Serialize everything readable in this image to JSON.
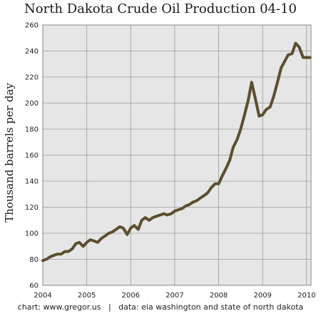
{
  "chart_data": {
    "type": "line",
    "title": "North Dakota Crude Oil Production 04-10",
    "ylabel": "Thousand barrels per day",
    "xlabel": "",
    "footer": "chart: www.gregor.us   |   data: eia washington and state of north dakota",
    "xlim": [
      2004,
      2010.1
    ],
    "ylim": [
      60,
      260
    ],
    "x_ticks": [
      "2004",
      "2005",
      "2006",
      "2007",
      "2008",
      "2009",
      "2010"
    ],
    "y_ticks": [
      "60",
      "80",
      "100",
      "120",
      "140",
      "160",
      "180",
      "200",
      "220",
      "240",
      "260"
    ],
    "grid": true,
    "colors": {
      "line": "#5c4e2f",
      "plot_bg": "#e6e6e6",
      "grid": "#9a9a9a"
    },
    "series": [
      {
        "x": [
          2004.0,
          2004.08,
          2004.17,
          2004.25,
          2004.33,
          2004.42,
          2004.5,
          2004.58,
          2004.67,
          2004.75,
          2004.83,
          2004.92,
          2005.0,
          2005.08,
          2005.17,
          2005.25,
          2005.33,
          2005.42,
          2005.5,
          2005.58,
          2005.67,
          2005.75,
          2005.83,
          2005.92,
          2006.0,
          2006.08,
          2006.17,
          2006.25,
          2006.33,
          2006.42,
          2006.5,
          2006.58,
          2006.67,
          2006.75,
          2006.83,
          2006.92,
          2007.0,
          2007.08,
          2007.17,
          2007.25,
          2007.33,
          2007.42,
          2007.5,
          2007.58,
          2007.67,
          2007.75,
          2007.83,
          2007.92,
          2008.0,
          2008.08,
          2008.17,
          2008.25,
          2008.33,
          2008.42,
          2008.5,
          2008.58,
          2008.67,
          2008.75,
          2008.83,
          2008.92,
          2009.0,
          2009.08,
          2009.17,
          2009.25,
          2009.33,
          2009.42,
          2009.5,
          2009.58,
          2009.67,
          2009.75,
          2009.83,
          2009.92,
          2010.0,
          2010.08
        ],
        "values": [
          79,
          80,
          82,
          83,
          84,
          84,
          86,
          86,
          88,
          92,
          93,
          90,
          93,
          95,
          94,
          93,
          96,
          98,
          100,
          101,
          103,
          105,
          104,
          99,
          104,
          106,
          103,
          110,
          112,
          110,
          112,
          113,
          114,
          115,
          114,
          115,
          117,
          118,
          119,
          121,
          122,
          124,
          125,
          127,
          129,
          131,
          135,
          138,
          138,
          144,
          150,
          156,
          166,
          172,
          180,
          190,
          202,
          216,
          204,
          190,
          191,
          195,
          197,
          205,
          215,
          227,
          232,
          237,
          238,
          246,
          243,
          235,
          235,
          235
        ]
      }
    ]
  }
}
